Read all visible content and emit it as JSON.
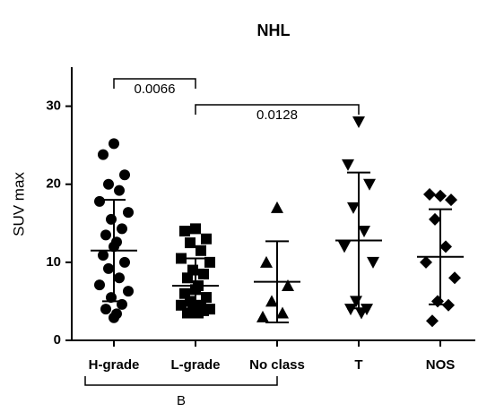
{
  "chart_data": {
    "type": "scatter_dot",
    "title": "NHL",
    "y_label": "SUV max",
    "ylim": [
      0,
      35
    ],
    "yticks": [
      0,
      10,
      20,
      30
    ],
    "color": "#000000",
    "groups": [
      {
        "category": "H-grade",
        "marker": "circle",
        "values": [
          25.2,
          23.8,
          21.2,
          20,
          19.2,
          17.8,
          16.4,
          15.5,
          14.3,
          13.5,
          12.6,
          12,
          10.9,
          10,
          9.2,
          8,
          7.1,
          6.3,
          5.5,
          4.6,
          4,
          3.4,
          2.9
        ],
        "mean": 11.5,
        "sd": 6.5
      },
      {
        "category": "L-grade",
        "marker": "square",
        "values": [
          14.3,
          14,
          13,
          12.5,
          11.5,
          10.5,
          10,
          9,
          8.5,
          8,
          7,
          6.5,
          6,
          5.5,
          5,
          4.5,
          4.5,
          4,
          4,
          3.8,
          3.5,
          3.5
        ],
        "mean": 7,
        "sd": 3.5
      },
      {
        "category": "No class",
        "marker": "triangle-up",
        "values": [
          17,
          10,
          7,
          5,
          3.5,
          3
        ],
        "mean": 7.5,
        "sd": 5.2
      },
      {
        "category": "T",
        "marker": "triangle-down",
        "values": [
          28,
          22.5,
          20,
          17,
          14,
          12,
          10,
          5,
          4,
          4,
          3.5
        ],
        "mean": 12.8,
        "sd": 8.7
      },
      {
        "category": "NOS",
        "marker": "diamond",
        "values": [
          18.5,
          18.7,
          18,
          15.5,
          12,
          10,
          8,
          5,
          4.5,
          2.5
        ],
        "mean": 10.7,
        "sd": 6.1
      }
    ],
    "brackets": [
      {
        "label": "0.0066",
        "from": 0,
        "to": 1,
        "position": "top"
      },
      {
        "label": "0.0128",
        "from": 1,
        "to": 3,
        "position": "top"
      },
      {
        "label": "B",
        "from": 0,
        "to": 2,
        "position": "bottom"
      }
    ]
  }
}
